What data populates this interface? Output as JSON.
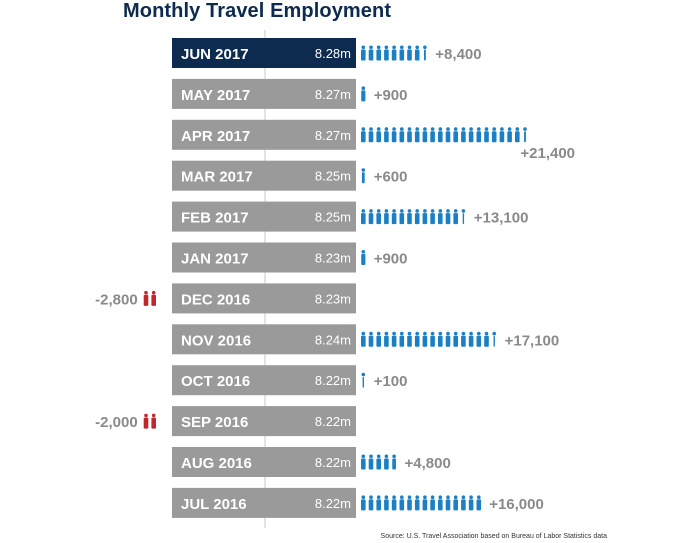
{
  "title": "Monthly Travel Employment",
  "source": "Source: U.S. Travel Association based on Bureau of Labor Statistics data",
  "colors": {
    "highlight_bar": "#0d2a4f",
    "bar": "#9a9a9a",
    "gain_icon": "#1a7fc4",
    "loss_icon": "#c0272d",
    "change_label": "#8a8a8a"
  },
  "icon": "person-icon",
  "chart_data": {
    "type": "bar",
    "title": "Monthly Travel Employment",
    "xlabel": "",
    "ylabel": "",
    "categories": [
      "JUN 2017",
      "MAY 2017",
      "APR 2017",
      "MAR 2017",
      "FEB 2017",
      "JAN 2017",
      "DEC 2016",
      "NOV 2016",
      "OCT 2016",
      "SEP 2016",
      "AUG 2016",
      "JUL 2016"
    ],
    "employment_labels": [
      "8.28m",
      "8.27m",
      "8.27m",
      "8.25m",
      "8.25m",
      "8.23m",
      "8.23m",
      "8.24m",
      "8.22m",
      "8.22m",
      "8.22m",
      "8.22m"
    ],
    "change_values": [
      8400,
      900,
      21400,
      600,
      13100,
      900,
      -2800,
      17100,
      100,
      -2000,
      4800,
      16000
    ],
    "change_labels": [
      "+8,400",
      "+900",
      "+21,400",
      "+600",
      "+13,100",
      "+900",
      "-2,800",
      "+17,100",
      "+100",
      "-2,000",
      "+4,800",
      "+16,000"
    ],
    "highlighted_category": "JUN 2017",
    "icon_unit": 1000
  }
}
